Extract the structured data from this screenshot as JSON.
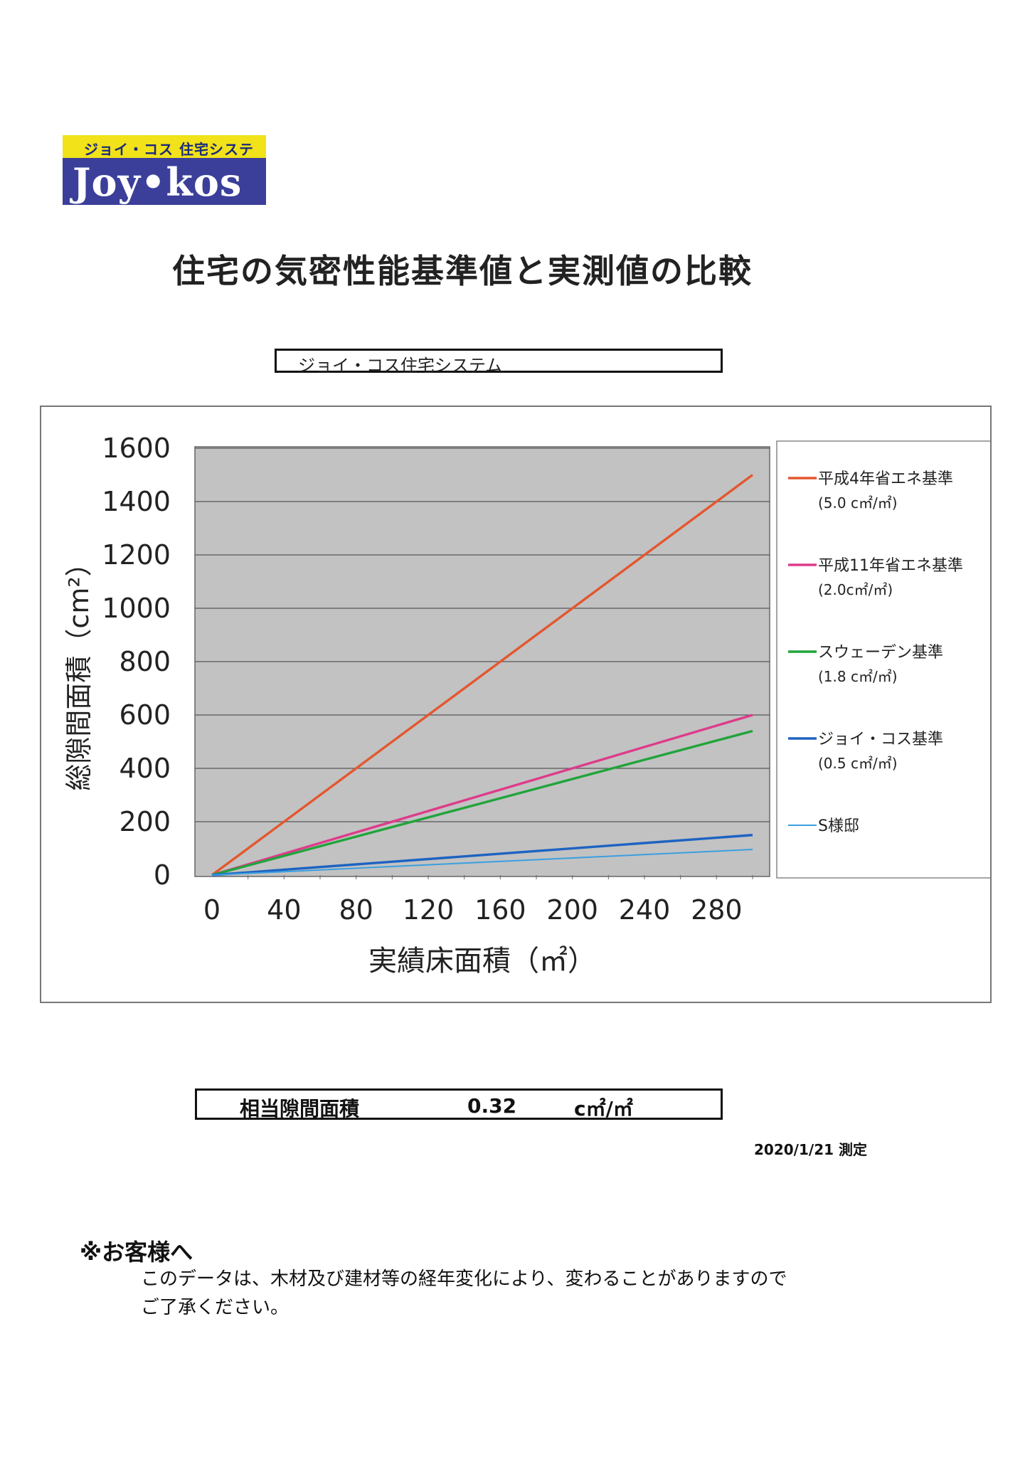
{
  "logo": {
    "top_text": "ジョイ・コス 住宅システム",
    "main_text": "Joy•kos"
  },
  "title": "住宅の気密性能基準値と実測値の比較",
  "company": "ジョイ・コス住宅システム",
  "chart_data": {
    "type": "line",
    "xlabel": "実績床面積（㎡）",
    "ylabel": "総隙間面積（cm²）",
    "xlim": [
      0,
      300
    ],
    "ylim": [
      0,
      1600
    ],
    "x_ticks": [
      0,
      40,
      80,
      120,
      160,
      200,
      240,
      280
    ],
    "y_ticks": [
      0,
      200,
      400,
      600,
      800,
      1000,
      1200,
      1400,
      1600
    ],
    "grid": "horizontal",
    "background": "#c2c2c2",
    "legend_position": "right",
    "series": [
      {
        "name": "平成4年省エネ基準",
        "note": "(5.0 c㎡/㎡)",
        "color": "#e4572e",
        "x": [
          0,
          300
        ],
        "y": [
          0,
          1500
        ]
      },
      {
        "name": "平成11年省エネ基準",
        "note": "(2.0c㎡/㎡)",
        "color": "#de3b8a",
        "x": [
          0,
          300
        ],
        "y": [
          0,
          600
        ]
      },
      {
        "name": "スウェーデン基準",
        "note": "(1.8 c㎡/㎡)",
        "color": "#21a43b",
        "x": [
          0,
          300
        ],
        "y": [
          0,
          540
        ]
      },
      {
        "name": "ジョイ・コス基準",
        "note": "(0.5  c㎡/㎡)",
        "color": "#1d63c2",
        "x": [
          0,
          300
        ],
        "y": [
          0,
          150
        ]
      },
      {
        "name": "S様邸",
        "note": "",
        "color": "#3a9fe0",
        "x": [
          0,
          300
        ],
        "y": [
          0,
          96
        ]
      }
    ]
  },
  "result": {
    "label": "相当隙間面積",
    "value": "0.32",
    "unit": "c㎡/㎡"
  },
  "measure_date": "2020/1/21 測定",
  "notice": {
    "heading": "※お客様へ",
    "lines": [
      "このデータは、木材及び建材等の経年変化により、変わることがありますので",
      "ご了承ください。"
    ]
  }
}
